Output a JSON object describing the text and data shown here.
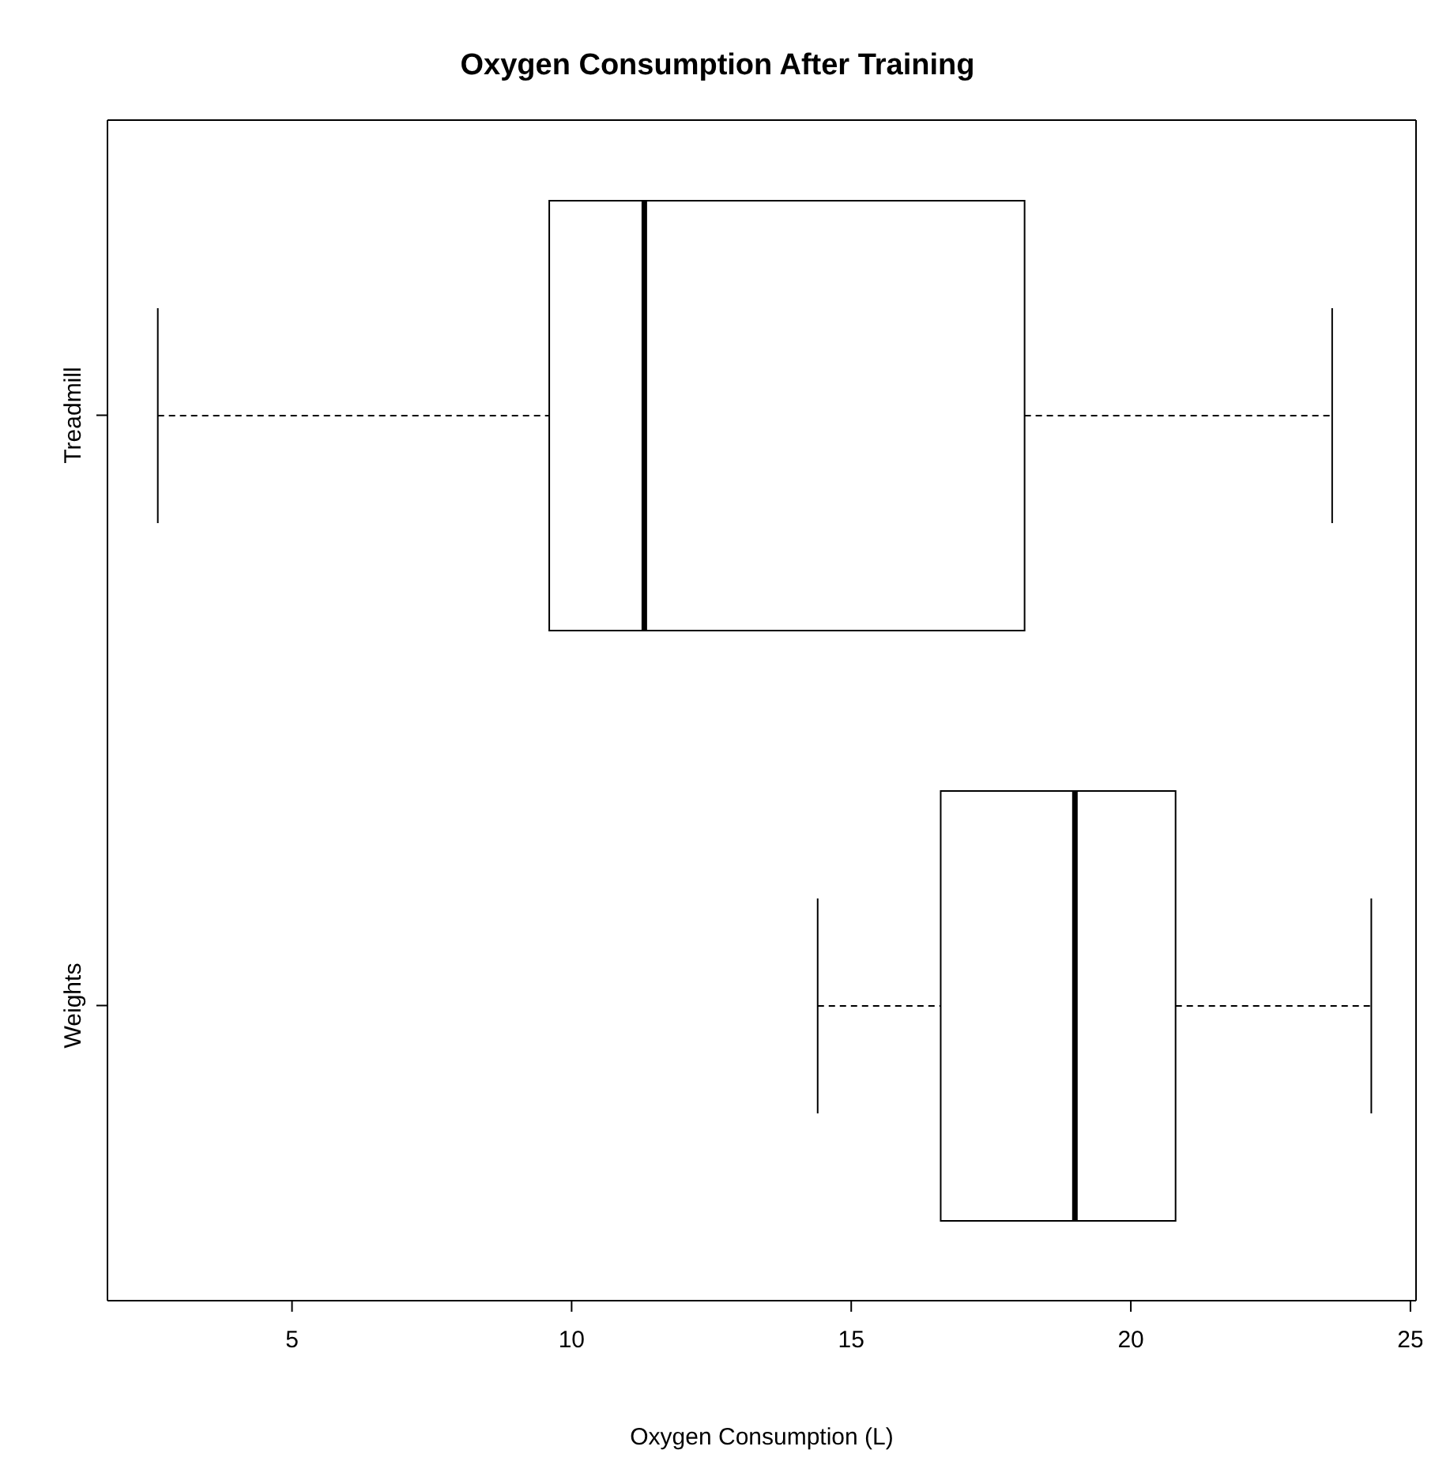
{
  "chart_data": {
    "type": "box",
    "orientation": "horizontal",
    "title": "Oxygen Consumption After Training",
    "xlabel": "Oxygen Consumption (L)",
    "categories": [
      "Treadmill",
      "Weights"
    ],
    "boxes": [
      {
        "low": 2.6,
        "q1": 9.6,
        "median": 11.3,
        "q3": 18.1,
        "high": 23.6
      },
      {
        "low": 14.4,
        "q1": 16.6,
        "median": 19.0,
        "q3": 20.8,
        "high": 24.3
      }
    ],
    "xlim": [
      1.7,
      25.1
    ],
    "xticks": [
      5,
      10,
      15,
      20,
      25
    ]
  }
}
